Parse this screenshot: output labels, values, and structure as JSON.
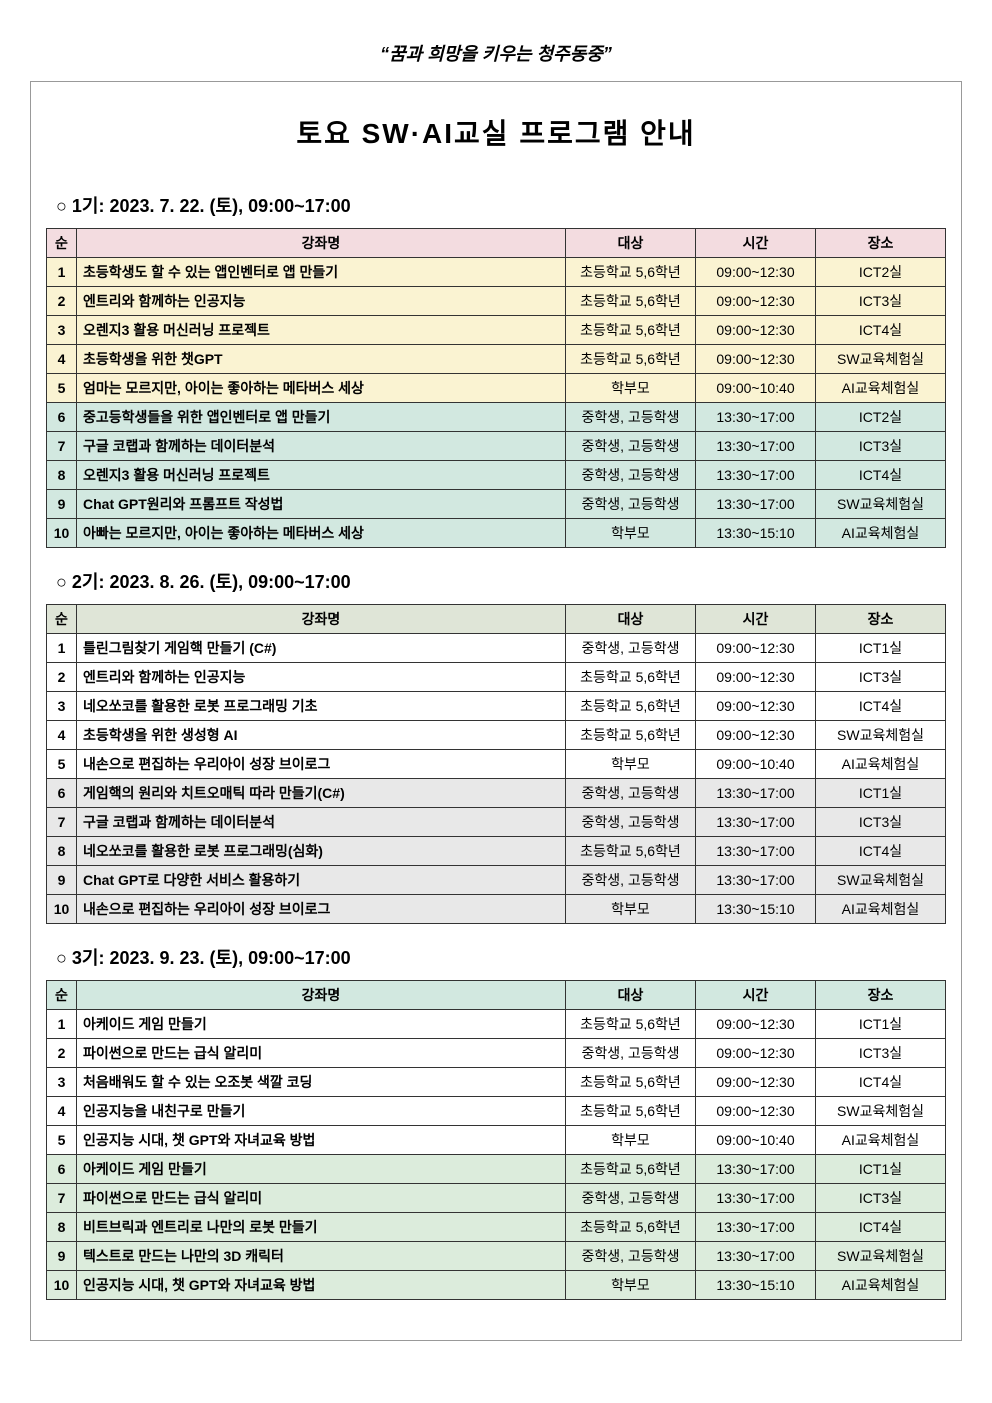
{
  "slogan": "“꿈과 희망을 키우는 청주동중”",
  "main_title": "토요 SW·AI교실 프로그램 안내",
  "headers": {
    "num": "순",
    "course": "강좌명",
    "target": "대상",
    "time": "시간",
    "place": "장소"
  },
  "sessions": [
    {
      "heading": "○ 1기: 2023. 7. 22. (토), 09:00~17:00",
      "header_bg": "#f3dce0",
      "row_a_bg": "#faf3d2",
      "row_b_bg": "#d2e8e0",
      "rows": [
        {
          "num": "1",
          "course": "초등학생도 할 수 있는 앱인벤터로 앱 만들기",
          "target": "초등학교 5,6학년",
          "time": "09:00~12:30",
          "place": "ICT2실",
          "group": "a"
        },
        {
          "num": "2",
          "course": "엔트리와 함께하는 인공지능",
          "target": "초등학교 5,6학년",
          "time": "09:00~12:30",
          "place": "ICT3실",
          "group": "a"
        },
        {
          "num": "3",
          "course": "오렌지3 활용 머신러닝 프로젝트",
          "target": "초등학교 5,6학년",
          "time": "09:00~12:30",
          "place": "ICT4실",
          "group": "a"
        },
        {
          "num": "4",
          "course": "초등학생을 위한 챗GPT",
          "target": "초등학교 5,6학년",
          "time": "09:00~12:30",
          "place": "SW교육체험실",
          "group": "a"
        },
        {
          "num": "5",
          "course": "엄마는 모르지만, 아이는 좋아하는 메타버스 세상",
          "target": "학부모",
          "time": "09:00~10:40",
          "place": "AI교육체험실",
          "group": "a"
        },
        {
          "num": "6",
          "course": "중고등학생들을 위한 앱인벤터로 앱 만들기",
          "target": "중학생, 고등학생",
          "time": "13:30~17:00",
          "place": "ICT2실",
          "group": "b"
        },
        {
          "num": "7",
          "course": "구글 코랩과 함께하는 데이터분석",
          "target": "중학생, 고등학생",
          "time": "13:30~17:00",
          "place": "ICT3실",
          "group": "b"
        },
        {
          "num": "8",
          "course": "오렌지3 활용 머신러닝 프로젝트",
          "target": "중학생, 고등학생",
          "time": "13:30~17:00",
          "place": "ICT4실",
          "group": "b"
        },
        {
          "num": "9",
          "course": "Chat GPT원리와 프롬프트 작성법",
          "target": "중학생, 고등학생",
          "time": "13:30~17:00",
          "place": "SW교육체험실",
          "group": "b"
        },
        {
          "num": "10",
          "course": "아빠는 모르지만, 아이는 좋아하는 메타버스 세상",
          "target": "학부모",
          "time": "13:30~15:10",
          "place": "AI교육체험실",
          "group": "b"
        }
      ]
    },
    {
      "heading": "○ 2기: 2023. 8. 26. (토), 09:00~17:00",
      "header_bg": "#dfe5d7",
      "row_a_bg": "#ffffff",
      "row_b_bg": "#e8e8e8",
      "rows": [
        {
          "num": "1",
          "course": "틀린그림찾기 게임핵 만들기 (C#)",
          "target": "중학생, 고등학생",
          "time": "09:00~12:30",
          "place": "ICT1실",
          "group": "a"
        },
        {
          "num": "2",
          "course": "엔트리와 함께하는 인공지능",
          "target": "초등학교 5,6학년",
          "time": "09:00~12:30",
          "place": "ICT3실",
          "group": "a"
        },
        {
          "num": "3",
          "course": "네오쏘코를 활용한 로봇 프로그래밍 기초",
          "target": "초등학교 5,6학년",
          "time": "09:00~12:30",
          "place": "ICT4실",
          "group": "a"
        },
        {
          "num": "4",
          "course": "초등학생을 위한 생성형 AI",
          "target": "초등학교 5,6학년",
          "time": "09:00~12:30",
          "place": "SW교육체험실",
          "group": "a"
        },
        {
          "num": "5",
          "course": "내손으로 편집하는 우리아이 성장 브이로그",
          "target": "학부모",
          "time": "09:00~10:40",
          "place": "AI교육체험실",
          "group": "a"
        },
        {
          "num": "6",
          "course": "게임핵의 원리와 치트오매틱 따라 만들기(C#)",
          "target": "중학생, 고등학생",
          "time": "13:30~17:00",
          "place": "ICT1실",
          "group": "b"
        },
        {
          "num": "7",
          "course": "구글 코랩과 함께하는 데이터분석",
          "target": "중학생, 고등학생",
          "time": "13:30~17:00",
          "place": "ICT3실",
          "group": "b"
        },
        {
          "num": "8",
          "course": "네오쏘코를 활용한 로봇 프로그래밍(심화)",
          "target": "초등학교 5,6학년",
          "time": "13:30~17:00",
          "place": "ICT4실",
          "group": "b"
        },
        {
          "num": "9",
          "course": "Chat GPT로 다양한 서비스 활용하기",
          "target": "중학생, 고등학생",
          "time": "13:30~17:00",
          "place": "SW교육체험실",
          "group": "b"
        },
        {
          "num": "10",
          "course": "내손으로 편집하는 우리아이 성장 브이로그",
          "target": "학부모",
          "time": "13:30~15:10",
          "place": "AI교육체험실",
          "group": "b"
        }
      ]
    },
    {
      "heading": "○ 3기: 2023. 9. 23. (토), 09:00~17:00",
      "header_bg": "#d2e8e0",
      "row_a_bg": "#ffffff",
      "row_b_bg": "#dcecdc",
      "rows": [
        {
          "num": "1",
          "course": "아케이드 게임 만들기",
          "target": "초등학교 5,6학년",
          "time": "09:00~12:30",
          "place": "ICT1실",
          "group": "a"
        },
        {
          "num": "2",
          "course": "파이썬으로 만드는 급식 알리미",
          "target": "중학생, 고등학생",
          "time": "09:00~12:30",
          "place": "ICT3실",
          "group": "a"
        },
        {
          "num": "3",
          "course": "처음배워도 할 수 있는 오조봇 색깔 코딩",
          "target": "초등학교 5,6학년",
          "time": "09:00~12:30",
          "place": "ICT4실",
          "group": "a"
        },
        {
          "num": "4",
          "course": "인공지능을 내친구로 만들기",
          "target": "초등학교 5,6학년",
          "time": "09:00~12:30",
          "place": "SW교육체험실",
          "group": "a"
        },
        {
          "num": "5",
          "course": "인공지능 시대, 챗 GPT와 자녀교육 방법",
          "target": "학부모",
          "time": "09:00~10:40",
          "place": "AI교육체험실",
          "group": "a"
        },
        {
          "num": "6",
          "course": "아케이드 게임 만들기",
          "target": "초등학교 5,6학년",
          "time": "13:30~17:00",
          "place": "ICT1실",
          "group": "b"
        },
        {
          "num": "7",
          "course": "파이썬으로 만드는 급식 알리미",
          "target": "중학생, 고등학생",
          "time": "13:30~17:00",
          "place": "ICT3실",
          "group": "b"
        },
        {
          "num": "8",
          "course": "비트브릭과 엔트리로 나만의 로봇 만들기",
          "target": "초등학교 5,6학년",
          "time": "13:30~17:00",
          "place": "ICT4실",
          "group": "b"
        },
        {
          "num": "9",
          "course": "텍스트로 만드는 나만의 3D 캐릭터",
          "target": "중학생, 고등학생",
          "time": "13:30~17:00",
          "place": "SW교육체험실",
          "group": "b"
        },
        {
          "num": "10",
          "course": "인공지능 시대, 챗 GPT와 자녀교육 방법",
          "target": "학부모",
          "time": "13:30~15:10",
          "place": "AI교육체험실",
          "group": "b"
        }
      ]
    }
  ]
}
